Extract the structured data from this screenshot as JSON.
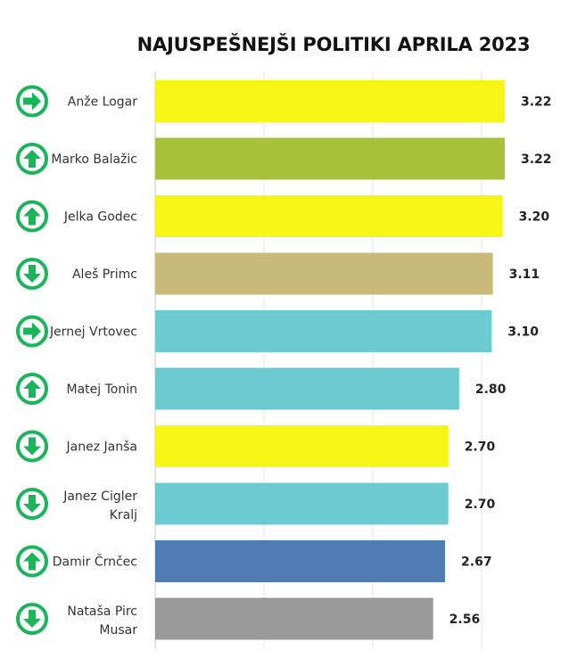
{
  "chart_data": {
    "type": "bar",
    "orientation": "horizontal",
    "title": "NAJUSPEŠNEJŠI POLITIKI APRILA 2023",
    "categories": [
      "Anže Logar",
      "Marko Balažic",
      "Jelka Godec",
      "Aleš Primc",
      "Jernej Vrtovec",
      "Matej Tonin",
      "Janez Janša",
      "Janez Cigler Kralj",
      "Damir Črnčec",
      "Nataša Pirc Musar"
    ],
    "values": [
      3.22,
      3.22,
      3.2,
      3.11,
      3.1,
      2.8,
      2.7,
      2.7,
      2.67,
      2.56
    ],
    "value_labels": [
      "3.22",
      "3.22",
      "3.20",
      "3.11",
      "3.10",
      "2.80",
      "2.70",
      "2.70",
      "2.67",
      "2.56"
    ],
    "trend_icons": [
      "arrow-right-icon",
      "arrow-up-icon",
      "arrow-up-icon",
      "arrow-down-icon",
      "arrow-right-icon",
      "arrow-up-icon",
      "arrow-down-icon",
      "arrow-down-icon",
      "arrow-up-icon",
      "arrow-down-icon"
    ],
    "bar_colors": [
      "#f7f516",
      "#a8c23c",
      "#f7f516",
      "#c9b97b",
      "#6ccbd0",
      "#6ccbd0",
      "#f7f516",
      "#6ccbd0",
      "#4f7bb3",
      "#9a9a9a"
    ],
    "icon_color": "#1cb45a",
    "xlim": [
      0,
      3.22
    ],
    "grid": "vertical lines"
  }
}
